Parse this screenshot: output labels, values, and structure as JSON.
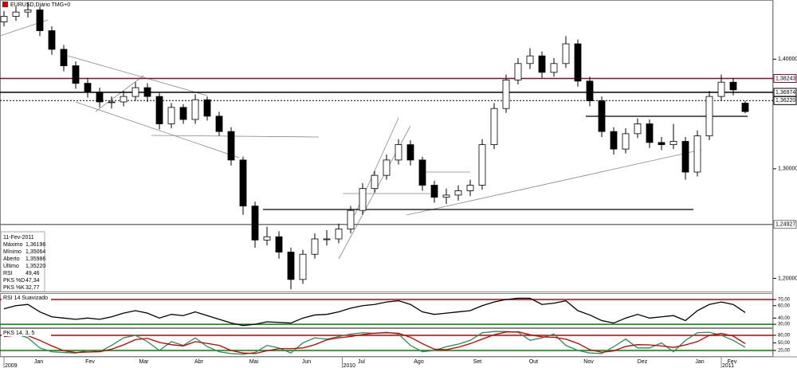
{
  "chart_data": {
    "type": "candlestick",
    "title": "EURUSD,Diário TMG+0",
    "xlim": [
      -0.333,
      64.333
    ],
    "ylim": [
      1.188,
      1.454
    ],
    "yticks": [
      {
        "value": 1.4,
        "label": "1,40000"
      },
      {
        "value": 1.3,
        "label": "1,30000"
      },
      {
        "value": 1.2,
        "label": "1,20000"
      }
    ],
    "xticks": [
      {
        "value": 2.9,
        "label": "Jan"
      },
      {
        "value": 7.2,
        "label": "Fev"
      },
      {
        "value": 11.7,
        "label": "Mar"
      },
      {
        "value": 16.3,
        "label": "Abr"
      },
      {
        "value": 20.9,
        "label": "Mai"
      },
      {
        "value": 25.3,
        "label": "Jun"
      },
      {
        "value": 29.9,
        "label": "Jul"
      },
      {
        "value": 34.7,
        "label": "Ago"
      },
      {
        "value": 39.6,
        "label": "Set"
      },
      {
        "value": 44.3,
        "label": "Out"
      },
      {
        "value": 48.9,
        "label": "Nov"
      },
      {
        "value": 53.4,
        "label": "Dez"
      },
      {
        "value": 58.2,
        "label": "Jan"
      },
      {
        "value": 60.9,
        "label": "Fev"
      }
    ],
    "year_ticks": [
      {
        "value": 0,
        "label": "2009"
      },
      {
        "value": 28.3,
        "label": "2010"
      },
      {
        "value": 60.0,
        "label": "2011"
      }
    ],
    "up_color": "#ffffff",
    "down_color": "#000000",
    "open": [
      1.434,
      1.439,
      1.443,
      1.445,
      1.426,
      1.409,
      1.394,
      1.378,
      1.37,
      1.361,
      1.361,
      1.366,
      1.374,
      1.366,
      1.341,
      1.356,
      1.345,
      1.363,
      1.348,
      1.334,
      1.308,
      1.266,
      1.235,
      1.238,
      1.224,
      1.199,
      1.222,
      1.236,
      1.236,
      1.245,
      1.262,
      1.282,
      1.294,
      1.308,
      1.322,
      1.308,
      1.285,
      1.274,
      1.276,
      1.28,
      1.285,
      1.322,
      1.355,
      1.381,
      1.396,
      1.403,
      1.388,
      1.396,
      1.414,
      1.38,
      1.362,
      1.334,
      1.318,
      1.332,
      1.341,
      1.324,
      1.322,
      1.325,
      1.297,
      1.33,
      1.366,
      1.379,
      1.35986
    ],
    "high": [
      1.444,
      1.448,
      1.452,
      1.448,
      1.43,
      1.413,
      1.398,
      1.383,
      1.374,
      1.366,
      1.371,
      1.379,
      1.378,
      1.369,
      1.36,
      1.359,
      1.368,
      1.366,
      1.352,
      1.338,
      1.311,
      1.27,
      1.247,
      1.243,
      1.228,
      1.226,
      1.241,
      1.244,
      1.25,
      1.266,
      1.287,
      1.298,
      1.313,
      1.327,
      1.326,
      1.311,
      1.289,
      1.282,
      1.285,
      1.29,
      1.327,
      1.36,
      1.386,
      1.401,
      1.41,
      1.407,
      1.401,
      1.421,
      1.418,
      1.384,
      1.366,
      1.338,
      1.337,
      1.346,
      1.345,
      1.329,
      1.341,
      1.329,
      1.335,
      1.371,
      1.386,
      1.383,
      1.36196
    ],
    "low": [
      1.43,
      1.435,
      1.438,
      1.421,
      1.404,
      1.389,
      1.373,
      1.365,
      1.356,
      1.355,
      1.357,
      1.362,
      1.361,
      1.336,
      1.337,
      1.341,
      1.341,
      1.344,
      1.33,
      1.303,
      1.258,
      1.228,
      1.23,
      1.218,
      1.19,
      1.195,
      1.218,
      1.23,
      1.232,
      1.241,
      1.258,
      1.278,
      1.29,
      1.304,
      1.303,
      1.28,
      1.269,
      1.268,
      1.271,
      1.275,
      1.281,
      1.318,
      1.351,
      1.377,
      1.391,
      1.383,
      1.384,
      1.392,
      1.375,
      1.357,
      1.329,
      1.313,
      1.314,
      1.328,
      1.319,
      1.317,
      1.318,
      1.29,
      1.293,
      1.326,
      1.362,
      1.367,
      1.35064
    ],
    "close": [
      1.439,
      1.443,
      1.445,
      1.426,
      1.409,
      1.394,
      1.378,
      1.37,
      1.361,
      1.361,
      1.366,
      1.374,
      1.366,
      1.341,
      1.356,
      1.345,
      1.363,
      1.348,
      1.334,
      1.308,
      1.266,
      1.235,
      1.238,
      1.224,
      1.199,
      1.222,
      1.236,
      1.236,
      1.245,
      1.262,
      1.282,
      1.294,
      1.308,
      1.322,
      1.308,
      1.285,
      1.274,
      1.276,
      1.28,
      1.285,
      1.322,
      1.355,
      1.381,
      1.396,
      1.403,
      1.388,
      1.396,
      1.414,
      1.38,
      1.362,
      1.334,
      1.318,
      1.332,
      1.341,
      1.324,
      1.322,
      1.325,
      1.297,
      1.33,
      1.366,
      1.379,
      1.372,
      1.3522
    ],
    "levels": [
      {
        "value": 1.38243,
        "label": "1,38243",
        "color": "#7a1040",
        "style": "solid"
      },
      {
        "value": 1.36974,
        "label": "1,36974",
        "color": "#000000",
        "style": "solid"
      },
      {
        "value": 1.3622,
        "label": "1,36220",
        "color": "#000000",
        "style": "dotted"
      },
      {
        "value": 1.24927,
        "label": "1,24927",
        "color": "#777777",
        "style": "solid"
      }
    ],
    "info": {
      "date": "11-Fev-2011",
      "rows": [
        {
          "label": "Máximo",
          "value": "1,36196",
          "color": "#000000"
        },
        {
          "label": "Mínimo",
          "value": "1,35064",
          "color": "#000000"
        },
        {
          "label": "Aberto",
          "value": "1,35986",
          "color": "#000000"
        },
        {
          "label": "Último",
          "value": "1,35220",
          "color": "#000000"
        },
        {
          "label": "RSI",
          "value": "49,46",
          "color": "#000000"
        },
        {
          "label": "PKS %D",
          "value": "47,34",
          "color": "#c00000"
        },
        {
          "label": "PKS %K",
          "value": "32,77",
          "color": "#2e8b57"
        }
      ]
    },
    "indicators": [
      {
        "type": "line",
        "title": "RSI 14 Suavizado",
        "ylim": [
          25,
          79
        ],
        "yticks": [
          {
            "value": 70,
            "label": "70,00"
          },
          {
            "value": 60,
            "label": "60,00"
          },
          {
            "value": 40,
            "label": "40,00"
          },
          {
            "value": 30,
            "label": "30,00"
          }
        ],
        "bands": [
          {
            "value": 70,
            "color": "#c00000"
          },
          {
            "value": 30,
            "color": "#008000"
          }
        ],
        "series": [
          {
            "color": "#000000",
            "values": [
              55,
              60,
              62,
              50,
              42,
              40,
              38,
              40,
              38,
              42,
              48,
              52,
              48,
              40,
              46,
              44,
              50,
              44,
              38,
              32,
              28,
              30,
              34,
              33,
              32,
              40,
              45,
              46,
              50,
              56,
              60,
              62,
              66,
              68,
              62,
              50,
              46,
              48,
              50,
              52,
              60,
              66,
              70,
              72,
              72,
              62,
              64,
              68,
              52,
              45,
              36,
              32,
              40,
              46,
              40,
              42,
              44,
              36,
              52,
              62,
              66,
              62,
              49
            ]
          }
        ]
      },
      {
        "type": "line",
        "title": "PKS 14, 3, 5",
        "ylim": [
          -2,
          105
        ],
        "yticks": [
          {
            "value": 80,
            "label": "80,00"
          },
          {
            "value": 50,
            "label": "50,00"
          },
          {
            "value": 20,
            "label": "20,00"
          }
        ],
        "bands": [
          {
            "value": 80,
            "color": "#c00000"
          },
          {
            "value": 20,
            "color": "#008000"
          }
        ],
        "series": [
          {
            "color": "#2e8b57",
            "values": [
              80,
              85,
              70,
              30,
              15,
              12,
              10,
              20,
              15,
              40,
              70,
              80,
              55,
              20,
              55,
              40,
              70,
              35,
              15,
              8,
              5,
              12,
              40,
              30,
              10,
              50,
              70,
              65,
              75,
              85,
              90,
              88,
              92,
              85,
              40,
              15,
              20,
              35,
              45,
              60,
              90,
              95,
              95,
              92,
              60,
              70,
              85,
              40,
              20,
              10,
              8,
              35,
              65,
              30,
              30,
              50,
              15,
              60,
              90,
              92,
              80,
              60,
              33
            ]
          },
          {
            "color": "#c00000",
            "values": [
              75,
              80,
              78,
              60,
              38,
              19,
              12,
              14,
              15,
              25,
              42,
              63,
              68,
              52,
              43,
              38,
              55,
              48,
              40,
              20,
              10,
              8,
              19,
              27,
              27,
              30,
              43,
              62,
              70,
              75,
              83,
              88,
              90,
              88,
              72,
              47,
              25,
              23,
              33,
              47,
              65,
              82,
              93,
              94,
              82,
              74,
              72,
              65,
              48,
              23,
              13,
              18,
              36,
              43,
              42,
              38,
              32,
              42,
              55,
              80,
              87,
              77,
              47
            ]
          }
        ]
      }
    ]
  }
}
